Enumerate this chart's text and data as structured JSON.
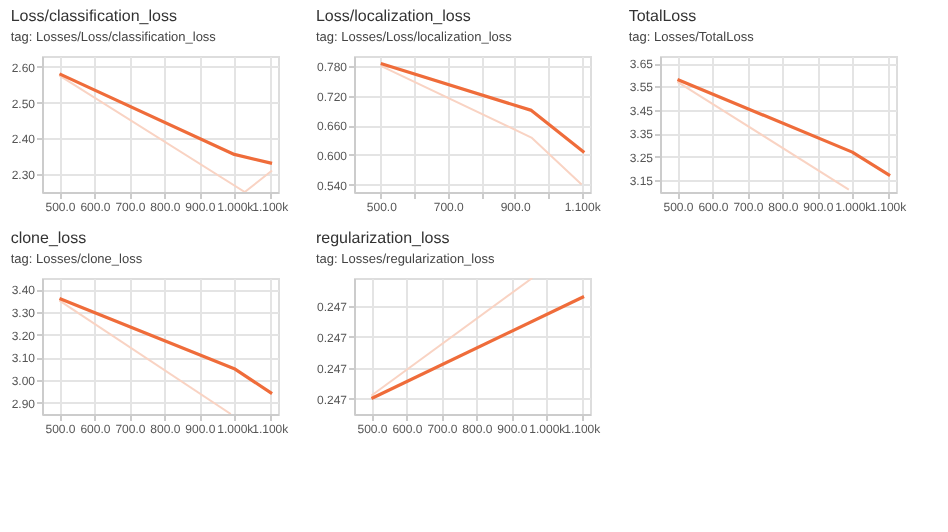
{
  "chart_data": [
    {
      "type": "line",
      "title": "Loss/classification_loss",
      "subtitle": "tag: Losses/Loss/classification_loss",
      "x": [
        500,
        1000,
        1108
      ],
      "series": [
        {
          "color": "#f9d3c3",
          "x": [
            500,
            1030,
            1108
          ],
          "values": [
            2.575,
            2.25,
            2.31
          ]
        },
        {
          "color": "#ef6c3a",
          "values": [
            2.58,
            2.355,
            2.33
          ]
        }
      ],
      "xlim": [
        450,
        1125
      ],
      "ylim": [
        2.25,
        2.63
      ],
      "xticks": [
        {
          "value": 500,
          "label": "500.0"
        },
        {
          "value": 600,
          "label": "600.0"
        },
        {
          "value": 700,
          "label": "700.0"
        },
        {
          "value": 800,
          "label": "800.0"
        },
        {
          "value": 900,
          "label": "900.0"
        },
        {
          "value": 1000,
          "label": "1.000k"
        },
        {
          "value": 1100,
          "label": "1.100k"
        }
      ],
      "yticks": [
        {
          "value": 2.3,
          "label": "2.30"
        },
        {
          "value": 2.4,
          "label": "2.40"
        },
        {
          "value": 2.5,
          "label": "2.50"
        },
        {
          "value": 2.6,
          "label": "2.60"
        }
      ],
      "grid": true,
      "legend": false,
      "line_style": "solid"
    },
    {
      "type": "line",
      "title": "Loss/localization_loss",
      "subtitle": "tag: Losses/Loss/localization_loss",
      "x": [
        500,
        950,
        1108
      ],
      "series": [
        {
          "color": "#f9d3c3",
          "x": [
            500,
            950,
            1100
          ],
          "values": [
            0.78,
            0.635,
            0.54
          ]
        },
        {
          "color": "#ef6c3a",
          "values": [
            0.785,
            0.69,
            0.605
          ]
        }
      ],
      "xlim": [
        420,
        1125
      ],
      "ylim": [
        0.525,
        0.8
      ],
      "xticks": [
        {
          "value": 500,
          "label": "500.0"
        },
        {
          "value": 600,
          "label": null
        },
        {
          "value": 700,
          "label": "700.0"
        },
        {
          "value": 800,
          "label": null
        },
        {
          "value": 900,
          "label": "900.0"
        },
        {
          "value": 1000,
          "label": null
        },
        {
          "value": 1100,
          "label": "1.100k"
        }
      ],
      "yticks": [
        {
          "value": 0.54,
          "label": "0.540"
        },
        {
          "value": 0.6,
          "label": "0.600"
        },
        {
          "value": 0.66,
          "label": "0.660"
        },
        {
          "value": 0.72,
          "label": "0.720"
        },
        {
          "value": 0.78,
          "label": "0.780"
        }
      ],
      "grid": true,
      "legend": false,
      "line_style": "solid"
    },
    {
      "type": "line",
      "title": "TotalLoss",
      "subtitle": "tag: Losses/TotalLoss",
      "x": [
        500,
        1000,
        1108
      ],
      "series": [
        {
          "color": "#f9d3c3",
          "x": [
            500,
            990
          ],
          "values": [
            3.57,
            3.11
          ]
        },
        {
          "color": "#ef6c3a",
          "values": [
            3.58,
            3.27,
            3.17
          ]
        }
      ],
      "xlim": [
        450,
        1125
      ],
      "ylim": [
        3.1,
        3.68
      ],
      "xticks": [
        {
          "value": 500,
          "label": "500.0"
        },
        {
          "value": 600,
          "label": "600.0"
        },
        {
          "value": 700,
          "label": "700.0"
        },
        {
          "value": 800,
          "label": "800.0"
        },
        {
          "value": 900,
          "label": "900.0"
        },
        {
          "value": 1000,
          "label": "1.000k"
        },
        {
          "value": 1100,
          "label": "1.100k"
        }
      ],
      "yticks": [
        3.15,
        3.25,
        3.35,
        3.45,
        3.55,
        3.65
      ],
      "grid": true,
      "legend": false,
      "line_style": "solid"
    },
    {
      "type": "line",
      "title": "clone_loss",
      "subtitle": "tag: Losses/clone_loss",
      "x": [
        500,
        1000,
        1108
      ],
      "series": [
        {
          "color": "#f9d3c3",
          "x": [
            500,
            990
          ],
          "values": [
            3.35,
            2.85
          ]
        },
        {
          "color": "#ef6c3a",
          "values": [
            3.36,
            3.05,
            2.94
          ]
        }
      ],
      "xlim": [
        450,
        1125
      ],
      "ylim": [
        2.85,
        3.45
      ],
      "xticks": [
        {
          "value": 500,
          "label": "500.0"
        },
        {
          "value": 600,
          "label": "600.0"
        },
        {
          "value": 700,
          "label": "700.0"
        },
        {
          "value": 800,
          "label": "800.0"
        },
        {
          "value": 900,
          "label": "900.0"
        },
        {
          "value": 1000,
          "label": "1.000k"
        },
        {
          "value": 1100,
          "label": "1.100k"
        }
      ],
      "yticks": [
        {
          "value": 2.9,
          "label": "2.90"
        },
        {
          "value": 3.0,
          "label": "3.00"
        },
        {
          "value": 3.1,
          "label": "3.10"
        },
        {
          "value": 3.2,
          "label": "3.20"
        },
        {
          "value": 3.3,
          "label": "3.30"
        },
        {
          "value": 3.4,
          "label": "3.40"
        }
      ],
      "grid": true,
      "legend": false,
      "line_style": "solid"
    },
    {
      "type": "line",
      "title": "regularization_loss",
      "subtitle": "tag: Losses/regularization_loss",
      "x": [
        500,
        1108
      ],
      "series": [
        {
          "color": "#f9d3c3",
          "x": [
            500,
            960
          ],
          "values": [
            0.24701,
            0.24739
          ]
        },
        {
          "color": "#ef6c3a",
          "values": [
            0.247,
            0.24733
          ]
        }
      ],
      "xlim": [
        450,
        1125
      ],
      "ylim": [
        0.24695,
        0.24739
      ],
      "xticks": [
        {
          "value": 500,
          "label": "500.0"
        },
        {
          "value": 600,
          "label": "600.0"
        },
        {
          "value": 700,
          "label": "700.0"
        },
        {
          "value": 800,
          "label": "800.0"
        },
        {
          "value": 900,
          "label": "900.0"
        },
        {
          "value": 1000,
          "label": "1.000k"
        },
        {
          "value": 1100,
          "label": "1.100k"
        }
      ],
      "yticks": [
        {
          "value": 0.247,
          "label": "0.247"
        },
        {
          "value": 0.2471,
          "label": "0.247"
        },
        {
          "value": 0.2472,
          "label": "0.247"
        },
        {
          "value": 0.2473,
          "label": "0.247"
        }
      ],
      "grid": true,
      "legend": false,
      "line_style": "solid"
    }
  ]
}
